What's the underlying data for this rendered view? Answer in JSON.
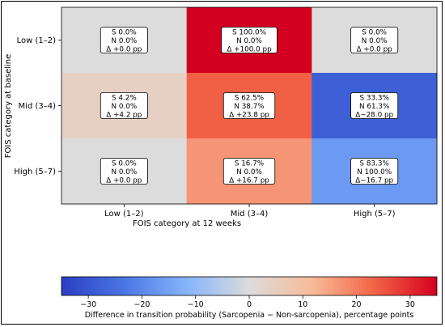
{
  "chart_data": {
    "type": "heatmap",
    "xlabel": "FOIS category at 12 weeks",
    "ylabel": "FOIS category at baseline",
    "x_categories": [
      "Low (1–2)",
      "Mid (3–4)",
      "High (5–7)"
    ],
    "y_categories": [
      "Low (1–2)",
      "Mid (3–4)",
      "High (5–7)"
    ],
    "cells": [
      [
        {
          "s": "S 0.0%",
          "n": "N 0.0%",
          "d": "Δ +0.0 pp",
          "value": 0.0
        },
        {
          "s": "S 100.0%",
          "n": "N 0.0%",
          "d": "Δ +100.0 pp",
          "value": 100.0
        },
        {
          "s": "S 0.0%",
          "n": "N 0.0%",
          "d": "Δ +0.0 pp",
          "value": 0.0
        }
      ],
      [
        {
          "s": "S 4.2%",
          "n": "N 0.0%",
          "d": "Δ +4.2 pp",
          "value": 4.2
        },
        {
          "s": "S 62.5%",
          "n": "N 38.7%",
          "d": "Δ +23.8 pp",
          "value": 23.8
        },
        {
          "s": "S 33.3%",
          "n": "N 61.3%",
          "d": "Δ−28.0 pp",
          "value": -28.0
        }
      ],
      [
        {
          "s": "S 0.0%",
          "n": "N 0.0%",
          "d": "Δ +0.0 pp",
          "value": 0.0
        },
        {
          "s": "S 16.7%",
          "n": "N 0.0%",
          "d": "Δ +16.7 pp",
          "value": 16.7
        },
        {
          "s": "S 83.3%",
          "n": "N 100.0%",
          "d": "Δ−16.7 pp",
          "value": -16.7
        }
      ]
    ],
    "zero_color": "#dcdcdc",
    "colorbar": {
      "label": "Difference in transition probability (Sarcopenia − Non-sarcopenia), percentage points",
      "range": [
        -35,
        35
      ],
      "ticks": [
        "−30",
        "−20",
        "−10",
        "0",
        "10",
        "20",
        "30"
      ],
      "tick_values": [
        -30,
        -20,
        -10,
        0,
        10,
        20,
        30
      ],
      "colormap": "coolwarm-like",
      "stops": [
        "#2b3ec2",
        "#4a76e4",
        "#86b4fb",
        "#dcdcdc",
        "#f7bb98",
        "#f26446",
        "#d4001f"
      ]
    }
  }
}
